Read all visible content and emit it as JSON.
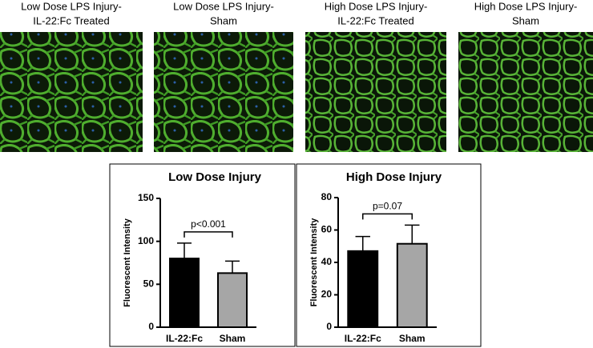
{
  "panels": [
    {
      "caption": [
        "Low Dose LPS Injury-",
        "IL-22:Fc Treated"
      ]
    },
    {
      "caption": [
        "Low Dose LPS Injury-",
        "Sham"
      ]
    },
    {
      "caption": [
        "High Dose LPS Injury-",
        "IL-22:Fc Treated"
      ]
    },
    {
      "caption": [
        "High Dose LPS Injury-",
        "Sham"
      ]
    }
  ],
  "chart_data": [
    {
      "type": "bar",
      "title": "Low Dose Injury",
      "y_label": "Fluorescent Intensity",
      "categories": [
        "IL-22:Fc",
        "Sham"
      ],
      "values": [
        80,
        63
      ],
      "errors": [
        18,
        14
      ],
      "colors": [
        "#000000",
        "#a6a6a6"
      ],
      "ylim": [
        0,
        150
      ],
      "yticks": [
        0,
        50,
        100,
        150
      ],
      "annotation": "p<0.001"
    },
    {
      "type": "bar",
      "title": "High Dose Injury",
      "y_label": "Fluorescent Intensity",
      "categories": [
        "IL-22:Fc",
        "Sham"
      ],
      "values": [
        47,
        51.5
      ],
      "errors": [
        9,
        11.5
      ],
      "colors": [
        "#000000",
        "#a6a6a6"
      ],
      "ylim": [
        0,
        80
      ],
      "yticks": [
        0,
        20,
        40,
        60,
        80
      ],
      "annotation": "p=0.07"
    }
  ]
}
